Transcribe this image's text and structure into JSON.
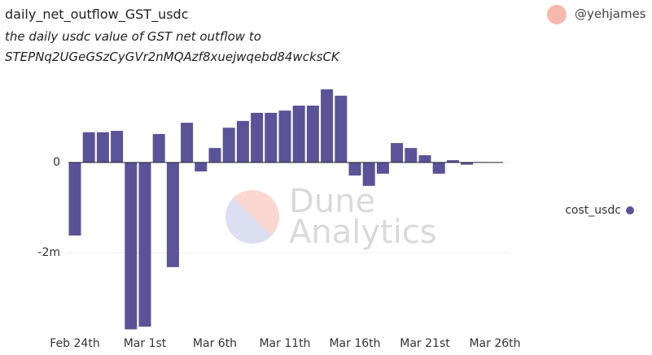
{
  "header": {
    "title": "daily_net_outflow_GST_usdc",
    "subtitle_lines": [
      "the daily usdc value of GST net outflow to",
      "STEPNq2UGeGSzCyGVr2nMQAzf8xuejwqebd84wcksCK"
    ],
    "author": "@yehjames"
  },
  "watermark": [
    "Dune",
    "Analytics"
  ],
  "chart_data": {
    "type": "bar",
    "categories": [
      "Feb 24th",
      null,
      null,
      null,
      null,
      "Mar 1st",
      null,
      null,
      null,
      null,
      "Mar 6th",
      null,
      null,
      null,
      null,
      "Mar 11th",
      null,
      null,
      null,
      null,
      "Mar 16th",
      null,
      null,
      null,
      null,
      "Mar 21st",
      null,
      null,
      null,
      null,
      "Mar 26th"
    ],
    "series": [
      {
        "name": "cost_usdc",
        "color": "#5b5397",
        "values": [
          -1620000,
          670000,
          670000,
          700000,
          -3700000,
          -3640000,
          630000,
          -2320000,
          880000,
          -200000,
          320000,
          770000,
          920000,
          1100000,
          1100000,
          1150000,
          1260000,
          1260000,
          1620000,
          1480000,
          -290000,
          -520000,
          -250000,
          430000,
          320000,
          160000,
          -250000,
          50000,
          -50000,
          10000,
          0
        ]
      }
    ],
    "ylim": [
      -3800000,
      1800000
    ],
    "yticks": [
      {
        "value": -2000000,
        "label": "-2m"
      },
      0
    ],
    "grid": true
  }
}
